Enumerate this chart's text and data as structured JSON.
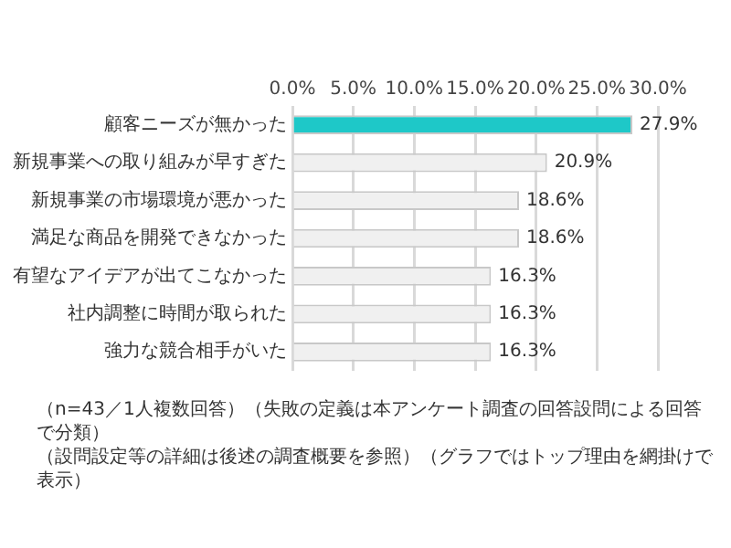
{
  "chart_data": {
    "type": "bar",
    "orientation": "horizontal",
    "categories": [
      "顧客ニーズが無かった",
      "新規事業への取り組みが早すぎた",
      "新規事業の市場環境が悪かった",
      "満足な商品を開発できなかった",
      "有望なアイデアが出てこなかった",
      "社内調整に時間が取られた",
      "強力な競合相手がいた"
    ],
    "values": [
      27.9,
      20.9,
      18.6,
      18.6,
      16.3,
      16.3,
      16.3
    ],
    "colors": [
      "#1ec8c8",
      "#f0f0f0",
      "#f0f0f0",
      "#f0f0f0",
      "#f0f0f0",
      "#f0f0f0",
      "#f0f0f0"
    ],
    "value_labels": [
      "27.9%",
      "20.9%",
      "18.6%",
      "18.6%",
      "16.3%",
      "16.3%",
      "16.3%"
    ],
    "xlim": [
      0,
      30
    ],
    "xticks": [
      {
        "value": 0,
        "label": "0.0%"
      },
      {
        "value": 5,
        "label": "5.0%"
      },
      {
        "value": 10,
        "label": "10.0%"
      },
      {
        "value": 15,
        "label": "15.0%"
      },
      {
        "value": 20,
        "label": "20.0%"
      },
      {
        "value": 25,
        "label": "25.0%"
      },
      {
        "value": 30,
        "label": "30.0%"
      }
    ],
    "grid": "x",
    "annotations": [
      "（n=43／1人複数回答）（失敗の定義は本アンケート調査の回答設問による回答で分類）",
      "（設問設定等の詳細は後述の調査概要を参照）（グラフではトップ理由を網掛けで表示）"
    ]
  }
}
